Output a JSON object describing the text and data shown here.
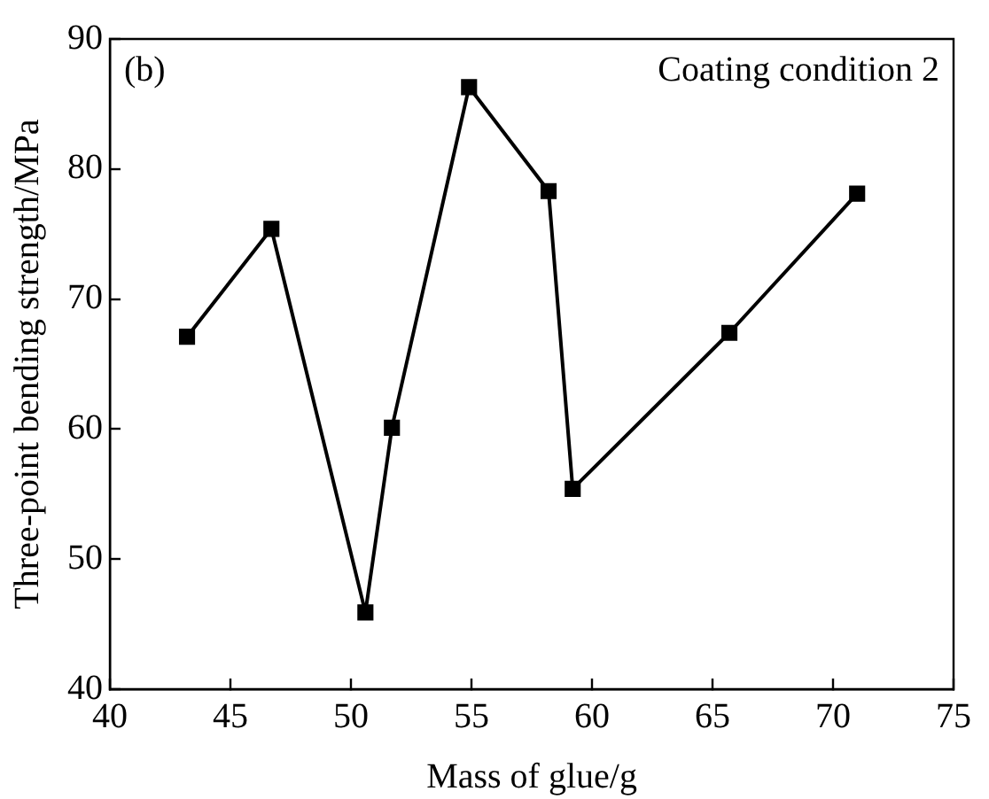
{
  "chart_data": {
    "type": "line",
    "xlabel": "Mass of glue/g",
    "ylabel": "Three-point bending strength/MPa",
    "annotations": [
      "(b)",
      "Coating condition 2"
    ],
    "x": [
      43.2,
      46.7,
      50.6,
      51.7,
      54.9,
      58.2,
      59.2,
      65.7,
      71.0
    ],
    "series": [
      {
        "color": "#000000",
        "values": [
          67.1,
          75.4,
          45.9,
          60.1,
          86.3,
          78.3,
          55.4,
          67.4,
          78.1
        ]
      }
    ],
    "xlim": [
      40,
      75
    ],
    "xticks": [
      40,
      45,
      50,
      55,
      60,
      65,
      70,
      75
    ],
    "ylim": [
      40,
      90
    ],
    "yticks": [
      40,
      50,
      60,
      70,
      80,
      90
    ],
    "grid": false,
    "legend": false,
    "marker": "square",
    "line_style": "solid"
  }
}
